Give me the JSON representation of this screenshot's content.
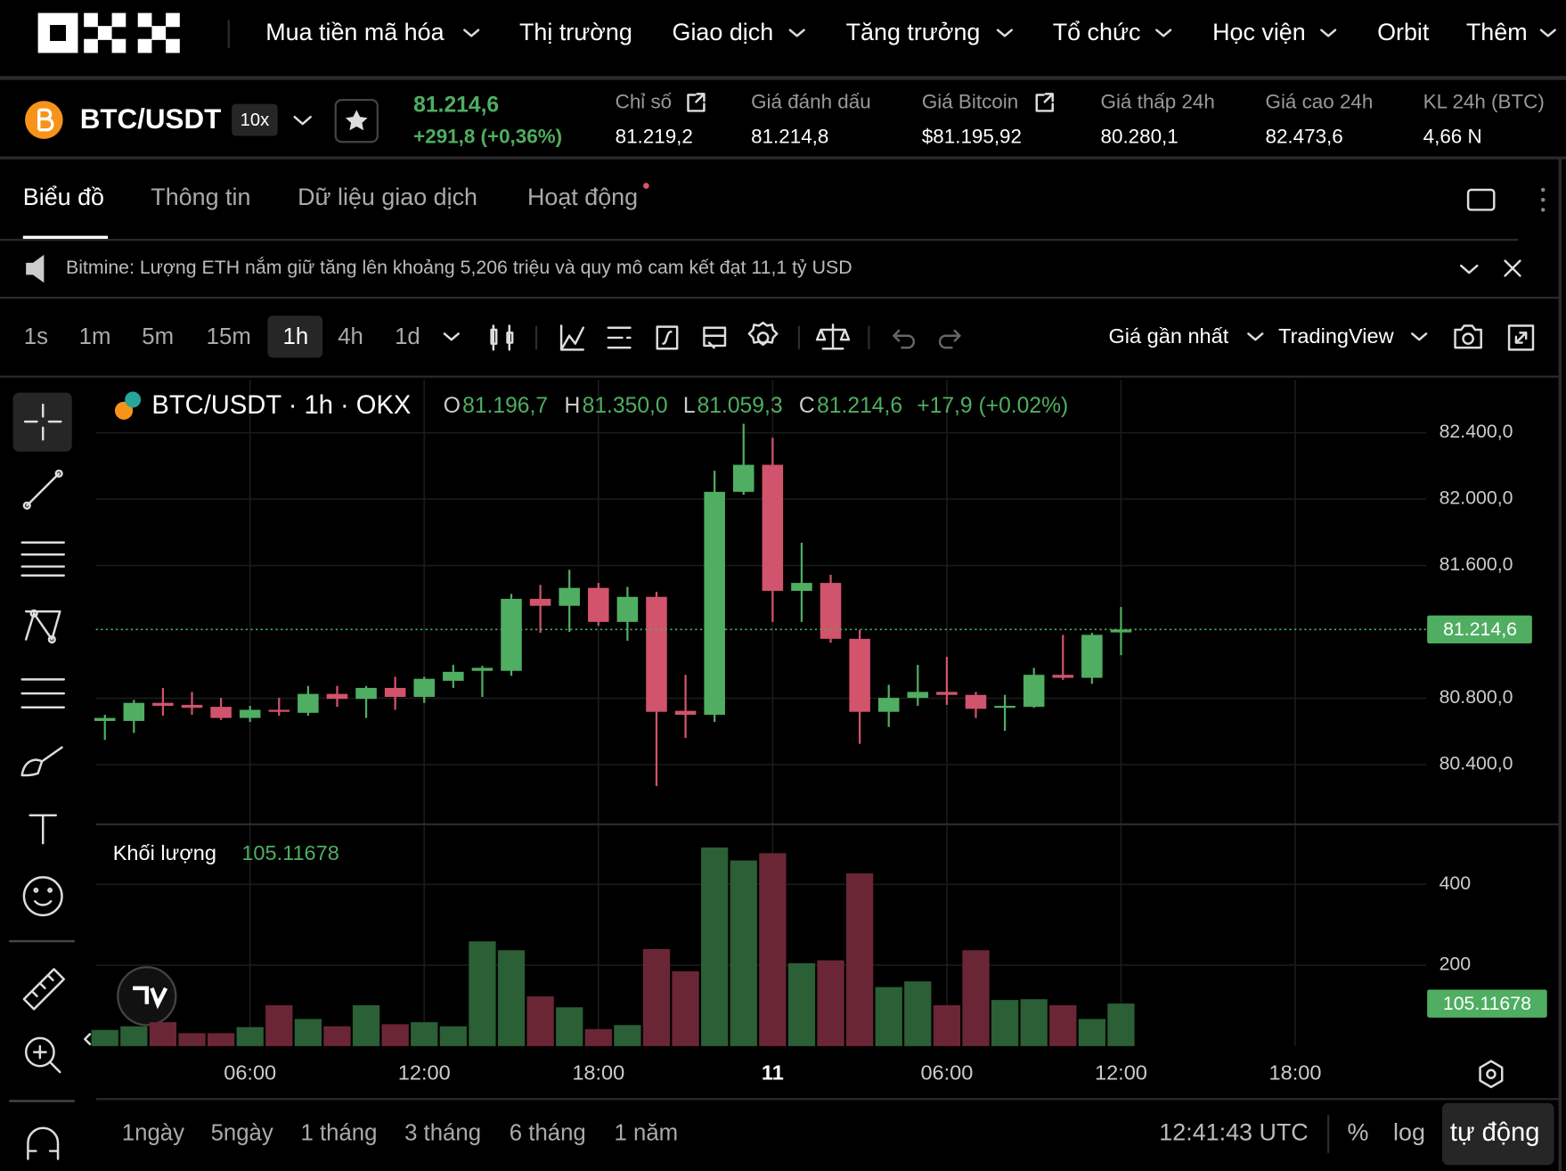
{
  "nav": {
    "items": [
      "Mua tiền mã hóa",
      "Thị trường",
      "Giao dịch",
      "Tăng trưởng",
      "Tổ chức",
      "Học viện",
      "Orbit",
      "Thêm"
    ]
  },
  "ticker": {
    "pair": "BTC/USDT",
    "leverage": "10x",
    "price": "81.214,6",
    "change": "+291,8 (+0,36%)",
    "stats": [
      {
        "label": "Chỉ số",
        "value": "81.219,2"
      },
      {
        "label": "Giá đánh dấu",
        "value": "81.214,8"
      },
      {
        "label": "Giá Bitcoin",
        "value": "$81.195,92"
      },
      {
        "label": "Giá thấp 24h",
        "value": "80.280,1"
      },
      {
        "label": "Giá cao 24h",
        "value": "82.473,6"
      },
      {
        "label": "KL 24h (BTC)",
        "value": "4,66 N"
      }
    ]
  },
  "tabs": [
    "Biểu đồ",
    "Thông tin",
    "Dữ liệu giao dịch",
    "Hoạt động"
  ],
  "news": "Bitmine: Lượng ETH nắm giữ tăng lên khoảng 5,206 triệu và quy mô cam kết đạt 11,1 tỷ USD",
  "intervals": [
    "1s",
    "1m",
    "5m",
    "15m",
    "1h",
    "4h",
    "1d"
  ],
  "toolbar": {
    "price_type": "Giá gần nhất",
    "chart_style": "TradingView"
  },
  "chart_data": {
    "type": "candlestick",
    "title": "BTC/USDT · 1h · OKX",
    "legend": [
      {
        "key": "O",
        "value": "81.196,7"
      },
      {
        "key": "H",
        "value": "81.350,0"
      },
      {
        "key": "L",
        "value": "81.059,3"
      },
      {
        "key": "C",
        "value": "81.214,6"
      }
    ],
    "legend_change": "+17,9 (+0.02%)",
    "categories": [
      null,
      null,
      null,
      null,
      null,
      "06:00",
      null,
      null,
      null,
      null,
      null,
      "12:00",
      null,
      null,
      null,
      null,
      null,
      "18:00",
      null,
      null,
      null,
      null,
      null,
      "11",
      null,
      null,
      null,
      null,
      null,
      "06:00",
      null,
      null,
      null,
      null,
      null,
      "12:00",
      null,
      null,
      null,
      null,
      null,
      "18:00"
    ],
    "open": [
      80663,
      80663,
      80772,
      80760,
      80748,
      80681,
      80730,
      80712,
      80826,
      80796,
      80862,
      80808,
      80905,
      80965,
      80965,
      81399,
      81357,
      81465,
      81260,
      81411,
      80724,
      80700,
      82044,
      82207,
      81447,
      81495,
      81158,
      80718,
      80802,
      80838,
      80820,
      80742,
      80748,
      80941,
      80923,
      81196.7,
      null,
      null,
      null,
      null,
      null,
      null
    ],
    "high": [
      80700,
      80790,
      80862,
      80838,
      80802,
      80754,
      80802,
      80874,
      80874,
      80874,
      80929,
      80929,
      81001,
      80995,
      81429,
      81483,
      81574,
      81495,
      81471,
      81441,
      80941,
      82171,
      82454,
      82370,
      81737,
      81544,
      81212,
      80881,
      81001,
      81049,
      80838,
      80820,
      80983,
      81182,
      81194,
      81350,
      null,
      null,
      null,
      null,
      null,
      null
    ],
    "low": [
      80549,
      80591,
      80694,
      80700,
      80669,
      80657,
      80694,
      80694,
      80748,
      80681,
      80730,
      80772,
      80862,
      80808,
      80935,
      81194,
      81200,
      81236,
      81146,
      80271,
      80561,
      80657,
      82026,
      81260,
      81260,
      81134,
      80525,
      80627,
      80754,
      80760,
      80681,
      80603,
      80742,
      80911,
      80887,
      81059.3,
      null,
      null,
      null,
      null,
      null,
      null
    ],
    "close": [
      80681,
      80772,
      80754,
      80742,
      80681,
      80730,
      80718,
      80826,
      80796,
      80862,
      80808,
      80917,
      80959,
      80983,
      81399,
      81357,
      81465,
      81260,
      81411,
      80718,
      80700,
      82044,
      82207,
      81447,
      81495,
      81158,
      80718,
      80802,
      80838,
      80820,
      80736,
      80754,
      80941,
      80923,
      81182,
      81214.6,
      null,
      null,
      null,
      null,
      null,
      null
    ],
    "volume": [
      40,
      49,
      59,
      32,
      32,
      47,
      101,
      67,
      49,
      101,
      54,
      59,
      49,
      259,
      237,
      123,
      96,
      42,
      52,
      240,
      185,
      491,
      459,
      477,
      205,
      212,
      427,
      146,
      160,
      101,
      237,
      114,
      116,
      101,
      67,
      105.11678,
      null,
      null,
      null,
      null,
      null,
      null
    ],
    "last_price_label": "81.214,6",
    "ylim": [
      80040,
      82720
    ],
    "yticks": [
      {
        "value": 80400,
        "label": "80.400,0"
      },
      {
        "value": 80800,
        "label": "80.800,0"
      },
      {
        "value": 81600,
        "label": "81.600,0"
      },
      {
        "value": 82000,
        "label": "82.000,0"
      },
      {
        "value": 82400,
        "label": "82.400,0"
      }
    ],
    "volume_title": "Khối lượng",
    "volume_ylim": [
      0,
      541
    ],
    "volume_yticks": [
      200,
      400
    ],
    "up_color": "#4fae61",
    "down_color": "#d1536c",
    "volume_up_color": "#2b5f35",
    "volume_down_color": "#6b2636",
    "grid": true
  },
  "bottom": {
    "ranges": [
      "1ngày",
      "5ngày",
      "1 tháng",
      "3 tháng",
      "6 tháng",
      "1 năm"
    ],
    "clock": "12:41:43 UTC",
    "percent": "%",
    "log": "log",
    "auto": "tự động"
  }
}
